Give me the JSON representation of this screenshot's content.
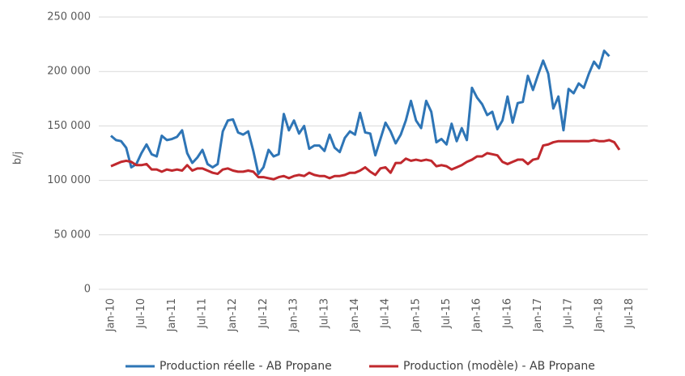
{
  "chart_data": {
    "type": "line",
    "y_label": "b/j",
    "categories": [
      "Jan-10",
      null,
      null,
      null,
      null,
      null,
      "Jul-10",
      null,
      null,
      null,
      null,
      null,
      "Jan-11",
      null,
      null,
      null,
      null,
      null,
      "Jul-11",
      null,
      null,
      null,
      null,
      null,
      "Jan-12",
      null,
      null,
      null,
      null,
      null,
      "Jul-12",
      null,
      null,
      null,
      null,
      null,
      "Jan-13",
      null,
      null,
      null,
      null,
      null,
      "Jul-13",
      null,
      null,
      null,
      null,
      null,
      "Jan-14",
      null,
      null,
      null,
      null,
      null,
      "Jul-14",
      null,
      null,
      null,
      null,
      null,
      "Jan-15",
      null,
      null,
      null,
      null,
      null,
      "Jul-15",
      null,
      null,
      null,
      null,
      null,
      "Jan-16",
      null,
      null,
      null,
      null,
      null,
      "Jul-16",
      null,
      null,
      null,
      null,
      null,
      "Jan-17",
      null,
      null,
      null,
      null,
      null,
      "Jul-17",
      null,
      null,
      null,
      null,
      null,
      "Jan-18",
      null,
      null,
      null,
      null,
      null,
      "Jul-18"
    ],
    "series": [
      {
        "name": "Production réelle - AB Propane",
        "color": "#2e75b6",
        "values": [
          141000,
          137000,
          136000,
          130000,
          112000,
          115000,
          125000,
          133000,
          124000,
          122000,
          141000,
          137000,
          138000,
          140000,
          146000,
          125000,
          116000,
          121000,
          128000,
          115000,
          112000,
          115000,
          145000,
          155000,
          156000,
          144000,
          142000,
          145000,
          127000,
          106000,
          112000,
          128000,
          122000,
          124000,
          161000,
          146000,
          155000,
          143000,
          150000,
          129000,
          132000,
          132000,
          127000,
          142000,
          130000,
          126000,
          139000,
          145000,
          142000,
          162000,
          144000,
          143000,
          123000,
          138000,
          153000,
          145000,
          134000,
          142000,
          155000,
          173000,
          155000,
          148000,
          173000,
          163000,
          135000,
          138000,
          133000,
          152000,
          136000,
          148000,
          137000,
          185000,
          176000,
          170000,
          160000,
          163000,
          147000,
          155000,
          177000,
          153000,
          171000,
          172000,
          196000,
          183000,
          197000,
          210000,
          198000,
          166000,
          177000,
          146000,
          184000,
          180000,
          189000,
          185000,
          198000,
          209000,
          203000,
          219000,
          214000,
          null,
          null,
          null,
          null
        ]
      },
      {
        "name": "Production (modèle) - AB Propane",
        "color": "#c0282d",
        "values": [
          113000,
          115000,
          117000,
          118000,
          117000,
          114000,
          114000,
          115000,
          110000,
          110000,
          108000,
          110000,
          109000,
          110000,
          109000,
          114000,
          109000,
          111000,
          111000,
          109000,
          107000,
          106000,
          110000,
          111000,
          109000,
          108000,
          108000,
          109000,
          108000,
          103000,
          103000,
          102000,
          101000,
          103000,
          104000,
          102000,
          104000,
          105000,
          104000,
          107000,
          105000,
          104000,
          104000,
          102000,
          104000,
          104000,
          105000,
          107000,
          107000,
          109000,
          112000,
          108000,
          105000,
          111000,
          112000,
          107000,
          116000,
          116000,
          120000,
          118000,
          119000,
          118000,
          119000,
          118000,
          113000,
          114000,
          113000,
          110000,
          112000,
          114000,
          117000,
          119000,
          122000,
          122000,
          125000,
          124000,
          123000,
          117000,
          115000,
          117000,
          119000,
          119000,
          115000,
          119000,
          120000,
          132000,
          133000,
          135000,
          136000,
          136000,
          136000,
          136000,
          136000,
          136000,
          136000,
          137000,
          136000,
          136000,
          137000,
          135000,
          128000,
          null,
          null
        ]
      }
    ],
    "ylim": [
      0,
      250000
    ],
    "yticks": [
      0,
      {
        "value": 50000,
        "label": "50 000"
      },
      {
        "value": 100000,
        "label": "100 000"
      },
      {
        "value": 150000,
        "label": "150 000"
      },
      {
        "value": 200000,
        "label": "200 000"
      },
      {
        "value": 250000,
        "label": "250 000"
      }
    ],
    "grid": true,
    "legend": "bottom"
  }
}
